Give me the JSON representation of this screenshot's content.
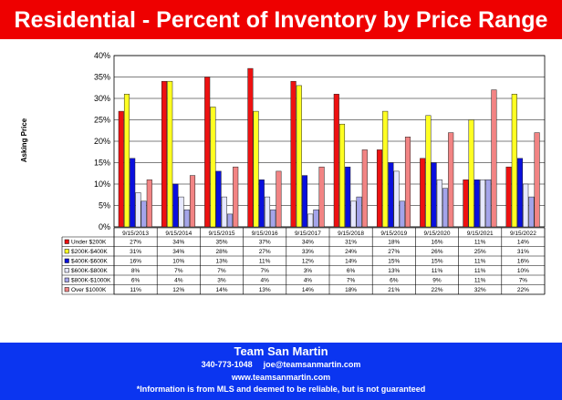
{
  "title": "Residential - Percent of Inventory by Price Range",
  "y_axis_label": "Asking Price",
  "footer": {
    "company": "Team San Martin",
    "phone": "340-773-1048",
    "email": "joe@teamsanmartin.com",
    "website": "www.teamsanmartin.com",
    "disclaimer": "*Information is from MLS and deemed to be reliable, but is not guaranteed"
  },
  "chart_data": {
    "type": "bar",
    "ylim": [
      0,
      40
    ],
    "y_ticks": [
      "0%",
      "5%",
      "10%",
      "15%",
      "20%",
      "25%",
      "30%",
      "35%",
      "40%"
    ],
    "grid": true,
    "legend": "data-table-bottom",
    "categories": [
      "9/15/2013",
      "9/15/2014",
      "9/15/2015",
      "9/15/2016",
      "9/15/2017",
      "9/15/2018",
      "9/15/2019",
      "9/15/2020",
      "9/15/2021",
      "9/15/2022"
    ],
    "series": [
      {
        "name": "Under $200K",
        "color": "#ee1111",
        "values": [
          27,
          34,
          35,
          37,
          34,
          31,
          18,
          16,
          11,
          14
        ]
      },
      {
        "name": "$200K-$400K",
        "color": "#ffff22",
        "values": [
          31,
          34,
          28,
          27,
          33,
          24,
          27,
          26,
          25,
          31
        ]
      },
      {
        "name": "$400K-$600K",
        "color": "#0a10dd",
        "values": [
          16,
          10,
          13,
          11,
          12,
          14,
          15,
          15,
          11,
          16
        ]
      },
      {
        "name": "$600K-$800K",
        "color": "#e6e8ff",
        "values": [
          8,
          7,
          7,
          7,
          3,
          6,
          13,
          11,
          11,
          10
        ]
      },
      {
        "name": "$800K-$1000K",
        "color": "#a4a4ea",
        "values": [
          6,
          4,
          3,
          4,
          4,
          7,
          6,
          9,
          11,
          7
        ]
      },
      {
        "name": "Over $1000K",
        "color": "#f28484",
        "values": [
          11,
          12,
          14,
          13,
          14,
          18,
          21,
          22,
          32,
          22
        ]
      }
    ]
  }
}
